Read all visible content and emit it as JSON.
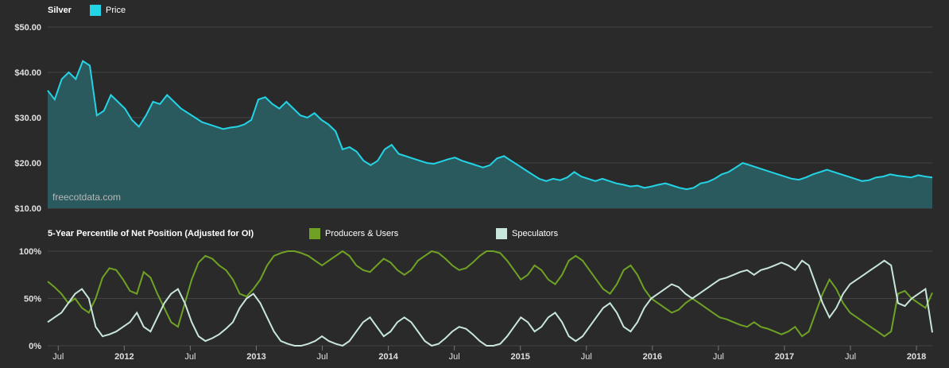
{
  "chart_data": [
    {
      "type": "area",
      "title": "Silver",
      "series": [
        {
          "name": "Price",
          "color": "#23d4e6"
        }
      ],
      "ylim": [
        10,
        50
      ],
      "y_ticks": [
        "$10.00",
        "$20.00",
        "$30.00",
        "$40.00",
        "$50.00"
      ],
      "watermark": "freecotdata.com",
      "x_start": 2011.42,
      "x_end": 2018.12,
      "price_values": [
        36.0,
        34.0,
        38.5,
        40.0,
        38.5,
        42.5,
        41.5,
        30.5,
        31.5,
        35.0,
        33.5,
        32.0,
        29.5,
        28.0,
        30.5,
        33.5,
        33.0,
        35.0,
        33.5,
        32.0,
        31.0,
        30.0,
        29.0,
        28.5,
        28.0,
        27.5,
        27.8,
        28.0,
        28.5,
        29.5,
        34.0,
        34.5,
        33.0,
        32.0,
        33.5,
        32.0,
        30.5,
        30.0,
        31.0,
        29.5,
        28.5,
        27.0,
        23.0,
        23.5,
        22.5,
        20.5,
        19.5,
        20.5,
        23.0,
        24.0,
        22.0,
        21.5,
        21.0,
        20.5,
        20.0,
        19.8,
        20.3,
        20.8,
        21.2,
        20.5,
        20.0,
        19.5,
        19.0,
        19.5,
        21.0,
        21.5,
        20.5,
        19.5,
        18.5,
        17.5,
        16.5,
        16.0,
        16.5,
        16.2,
        16.8,
        18.0,
        17.0,
        16.5,
        16.0,
        16.5,
        16.0,
        15.5,
        15.2,
        14.8,
        15.0,
        14.5,
        14.8,
        15.2,
        15.5,
        15.0,
        14.5,
        14.2,
        14.5,
        15.5,
        15.8,
        16.5,
        17.5,
        18.0,
        19.0,
        20.0,
        19.5,
        19.0,
        18.5,
        18.0,
        17.5,
        17.0,
        16.5,
        16.3,
        16.8,
        17.5,
        18.0,
        18.5,
        18.0,
        17.5,
        17.0,
        16.5,
        16.0,
        16.2,
        16.8,
        17.0,
        17.5,
        17.2,
        17.0,
        16.8,
        17.3,
        17.0,
        16.8
      ]
    },
    {
      "type": "line",
      "title": "5-Year Percentile of Net Position (Adjusted for OI)",
      "series": [
        {
          "name": "Producers & Users",
          "color": "#6fa224"
        },
        {
          "name": "Speculators",
          "color": "#c8e6dc"
        }
      ],
      "ylim": [
        0,
        100
      ],
      "y_ticks": [
        "0%",
        "50%",
        "100%"
      ],
      "x_ticks": [
        "Jul",
        "2012",
        "Jul",
        "2013",
        "Jul",
        "2014",
        "Jul",
        "2015",
        "Jul",
        "2016",
        "Jul",
        "2017",
        "Jul",
        "2018"
      ],
      "producers_values": [
        68,
        62,
        55,
        45,
        50,
        40,
        35,
        50,
        72,
        82,
        80,
        70,
        58,
        55,
        78,
        72,
        55,
        40,
        25,
        20,
        45,
        70,
        88,
        95,
        92,
        85,
        80,
        70,
        55,
        52,
        60,
        70,
        85,
        95,
        98,
        100,
        100,
        98,
        95,
        90,
        85,
        90,
        95,
        100,
        95,
        85,
        80,
        78,
        85,
        92,
        88,
        80,
        75,
        80,
        90,
        95,
        100,
        98,
        92,
        85,
        80,
        82,
        88,
        95,
        100,
        100,
        98,
        90,
        80,
        70,
        75,
        85,
        80,
        70,
        65,
        75,
        90,
        95,
        90,
        80,
        70,
        60,
        55,
        65,
        80,
        85,
        75,
        60,
        50,
        45,
        40,
        35,
        38,
        45,
        50,
        45,
        40,
        35,
        30,
        28,
        25,
        22,
        20,
        25,
        20,
        18,
        15,
        12,
        15,
        20,
        10,
        15,
        35,
        55,
        70,
        60,
        45,
        35,
        30,
        25,
        20,
        15,
        10,
        15,
        55,
        58,
        50,
        45,
        40,
        56
      ],
      "speculators_values": [
        25,
        30,
        35,
        45,
        55,
        60,
        50,
        20,
        10,
        12,
        15,
        20,
        25,
        35,
        20,
        15,
        30,
        45,
        55,
        60,
        45,
        25,
        10,
        5,
        8,
        12,
        18,
        25,
        40,
        50,
        55,
        45,
        30,
        15,
        5,
        2,
        0,
        0,
        2,
        5,
        10,
        5,
        2,
        0,
        5,
        15,
        25,
        30,
        20,
        10,
        15,
        25,
        30,
        25,
        15,
        5,
        0,
        2,
        8,
        15,
        20,
        18,
        12,
        5,
        0,
        0,
        2,
        10,
        20,
        30,
        25,
        15,
        20,
        30,
        35,
        25,
        10,
        5,
        10,
        20,
        30,
        40,
        45,
        35,
        20,
        15,
        25,
        40,
        50,
        55,
        60,
        65,
        62,
        55,
        50,
        55,
        60,
        65,
        70,
        72,
        75,
        78,
        80,
        75,
        80,
        82,
        85,
        88,
        85,
        80,
        90,
        85,
        65,
        45,
        30,
        40,
        55,
        65,
        70,
        75,
        80,
        85,
        90,
        85,
        45,
        42,
        50,
        55,
        60,
        14
      ]
    }
  ]
}
